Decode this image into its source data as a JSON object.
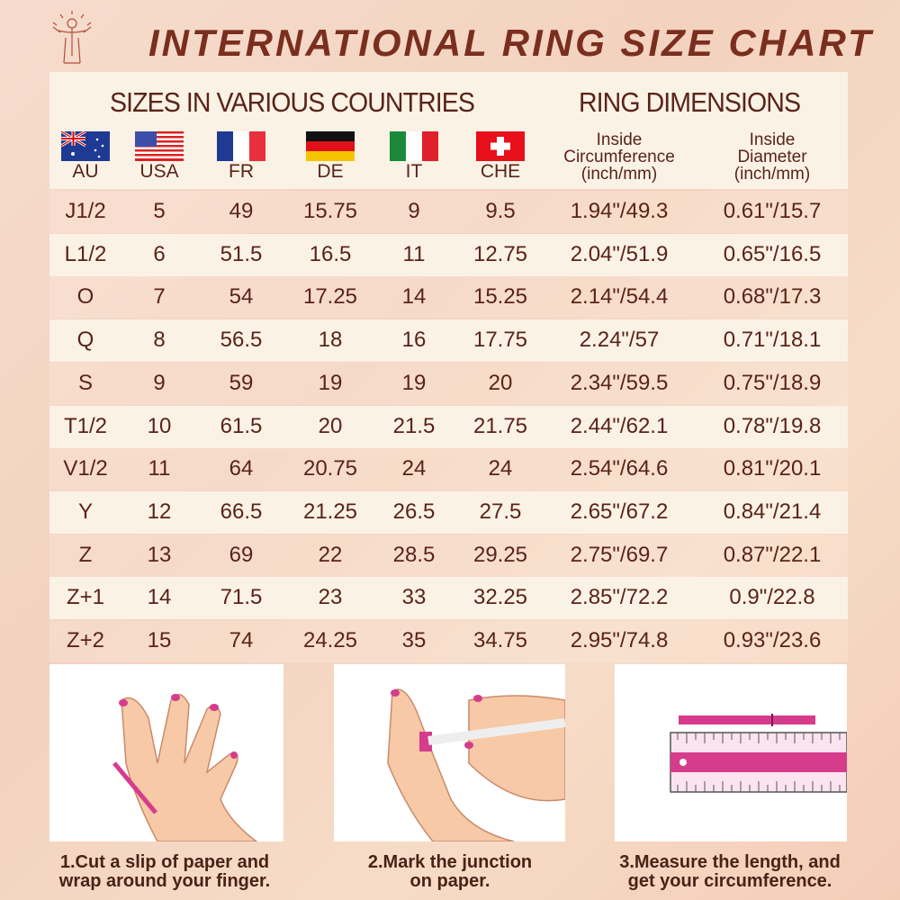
{
  "title": "INTERNATIONAL RING SIZE CHART",
  "sections": {
    "sizes": "SIZES IN VARIOUS COUNTRIES",
    "dimensions": "RING DIMENSIONS"
  },
  "countries": [
    {
      "code": "AU",
      "flag": "australia-flag"
    },
    {
      "code": "USA",
      "flag": "usa-flag"
    },
    {
      "code": "FR",
      "flag": "france-flag"
    },
    {
      "code": "DE",
      "flag": "germany-flag"
    },
    {
      "code": "IT",
      "flag": "italy-flag"
    },
    {
      "code": "CHE",
      "flag": "switzerland-flag"
    }
  ],
  "dimension_headers": {
    "circumference": [
      "Inside",
      "Circumference",
      "(inch/mm)"
    ],
    "diameter": [
      "Inside",
      "Diameter",
      "(inch/mm)"
    ]
  },
  "rows": [
    [
      "J1/2",
      "5",
      "49",
      "15.75",
      "9",
      "9.5",
      "1.94\"/49.3",
      "0.61\"/15.7"
    ],
    [
      "L1/2",
      "6",
      "51.5",
      "16.5",
      "11",
      "12.75",
      "2.04\"/51.9",
      "0.65\"/16.5"
    ],
    [
      "O",
      "7",
      "54",
      "17.25",
      "14",
      "15.25",
      "2.14\"/54.4",
      "0.68\"/17.3"
    ],
    [
      "Q",
      "8",
      "56.5",
      "18",
      "16",
      "17.75",
      "2.24\"/57",
      "0.71\"/18.1"
    ],
    [
      "S",
      "9",
      "59",
      "19",
      "19",
      "20",
      "2.34\"/59.5",
      "0.75\"/18.9"
    ],
    [
      "T1/2",
      "10",
      "61.5",
      "20",
      "21.5",
      "21.75",
      "2.44\"/62.1",
      "0.78\"/19.8"
    ],
    [
      "V1/2",
      "11",
      "64",
      "20.75",
      "24",
      "24",
      "2.54\"/64.6",
      "0.81\"/20.1"
    ],
    [
      "Y",
      "12",
      "66.5",
      "21.25",
      "26.5",
      "27.5",
      "2.65\"/67.2",
      "0.84\"/21.4"
    ],
    [
      "Z",
      "13",
      "69",
      "22",
      "28.5",
      "29.25",
      "2.75\"/69.7",
      "0.87\"/22.1"
    ],
    [
      "Z+1",
      "14",
      "71.5",
      "23",
      "33",
      "32.25",
      "2.85\"/72.2",
      "0.9\"/22.8"
    ],
    [
      "Z+2",
      "15",
      "74",
      "24.25",
      "35",
      "34.75",
      "2.95\"/74.8",
      "0.93\"/23.6"
    ]
  ],
  "steps": [
    [
      "1.Cut a slip of paper and",
      "wrap around your finger."
    ],
    [
      "2.Mark the junction",
      "on paper."
    ],
    [
      "3.Measure the length, and",
      "get your circumference."
    ]
  ],
  "colors": {
    "title": "#7a2f1e",
    "text": "#5a2318",
    "accent_pink": "#d63c8c",
    "row_alt": "#fbf2e6"
  }
}
